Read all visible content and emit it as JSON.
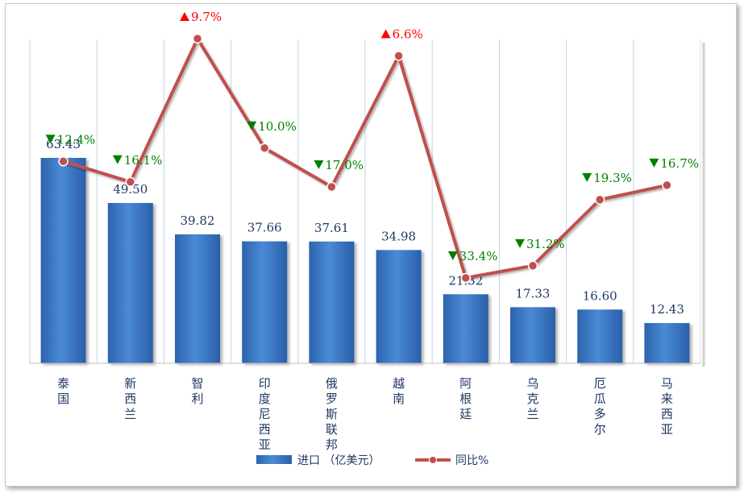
{
  "chart_data": {
    "type": "bar",
    "categories": [
      "泰国",
      "新西兰",
      "智利",
      "印度尼西亚",
      "俄罗斯联邦",
      "越南",
      "阿根廷",
      "乌克兰",
      "厄瓜多尔",
      "马来西亚"
    ],
    "series": [
      {
        "name": "进口 （亿美元）",
        "type": "bar",
        "values": [
          63.43,
          49.5,
          39.82,
          37.66,
          37.61,
          34.98,
          21.32,
          17.33,
          16.6,
          12.43
        ],
        "labels": [
          "63.43",
          "49.50",
          "39.82",
          "37.66",
          "37.61",
          "34.98",
          "21.32",
          "17.33",
          "16.60",
          "12.43"
        ],
        "color": "#3a78c9"
      },
      {
        "name": "同比%",
        "type": "line",
        "values": [
          -12.4,
          -16.1,
          9.7,
          -10.0,
          -17.0,
          6.6,
          -33.4,
          -31.2,
          -19.3,
          -16.7
        ],
        "labels": [
          "12.4%",
          "16.1%",
          "9.7%",
          "10.0%",
          "17.0%",
          "6.6%",
          "33.4%",
          "31.2%",
          "19.3%",
          "16.7%"
        ],
        "color": "#c0504d"
      }
    ],
    "up_color": "#ff0000",
    "down_color": "#008000",
    "grid": "vertical",
    "legend_position": "bottom"
  }
}
